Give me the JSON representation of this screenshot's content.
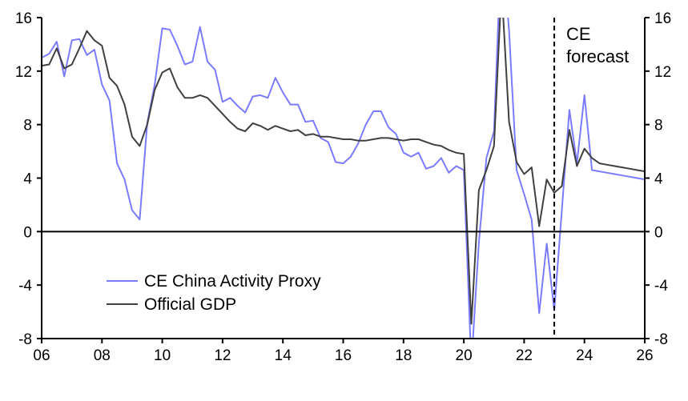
{
  "chart_data": {
    "type": "line",
    "title": "",
    "xlabel": "",
    "ylabel": "",
    "x_start": 2006.0,
    "x_step": 0.25,
    "xlim": [
      2006,
      2026
    ],
    "ylim": [
      -8,
      16
    ],
    "x_ticks": [
      2006,
      2008,
      2010,
      2012,
      2014,
      2016,
      2018,
      2020,
      2022,
      2024,
      2026
    ],
    "x_tick_labels": [
      "06",
      "08",
      "10",
      "12",
      "14",
      "16",
      "18",
      "20",
      "22",
      "24",
      "26"
    ],
    "y_ticks": [
      -8,
      -4,
      0,
      4,
      8,
      12,
      16
    ],
    "y_tick_labels": [
      "-8",
      "-4",
      "0",
      "4",
      "8",
      "12",
      "16"
    ],
    "legend_position": "bottom-left",
    "forecast_start": 2023.0,
    "annotation": [
      "CE",
      "forecast"
    ],
    "series": [
      {
        "name": "CE China Activity Proxy",
        "color": "#7b7bff",
        "values": [
          13.0,
          13.3,
          14.2,
          11.6,
          14.3,
          14.4,
          13.2,
          13.6,
          11.0,
          9.8,
          5.1,
          3.9,
          1.6,
          0.9,
          8.1,
          11.0,
          15.2,
          15.1,
          13.9,
          12.5,
          12.7,
          15.3,
          12.7,
          12.1,
          9.7,
          10.0,
          9.4,
          8.9,
          10.1,
          10.2,
          10.0,
          11.5,
          10.4,
          9.5,
          9.5,
          8.2,
          8.3,
          7.0,
          6.7,
          5.2,
          5.1,
          5.6,
          6.6,
          8.0,
          9.0,
          9.0,
          7.8,
          7.3,
          5.9,
          5.6,
          5.9,
          4.7,
          4.9,
          5.5,
          4.4,
          4.9,
          4.6,
          -10.0,
          -0.8,
          5.5,
          7.5,
          22.0,
          15.0,
          4.6,
          2.8,
          0.9,
          -6.1,
          -0.9,
          -5.9,
          1.6,
          9.1,
          5.1,
          10.2,
          4.6,
          4.5,
          4.4,
          4.3,
          4.2,
          4.1,
          4.0,
          3.9
        ]
      },
      {
        "name": "Official GDP",
        "color": "#404040",
        "values": [
          12.4,
          12.5,
          13.7,
          12.2,
          12.5,
          13.7,
          15.0,
          14.3,
          13.9,
          11.5,
          10.9,
          9.5,
          7.1,
          6.4,
          8.0,
          10.6,
          11.9,
          12.2,
          10.8,
          10.0,
          10.0,
          10.2,
          10.0,
          9.4,
          8.8,
          8.2,
          7.7,
          7.5,
          8.1,
          7.9,
          7.6,
          7.9,
          7.7,
          7.5,
          7.6,
          7.2,
          7.3,
          7.1,
          7.1,
          7.0,
          6.9,
          6.9,
          6.8,
          6.8,
          6.9,
          7.0,
          7.0,
          6.9,
          6.8,
          6.9,
          6.9,
          6.7,
          6.5,
          6.4,
          6.1,
          5.9,
          5.8,
          -6.9,
          3.1,
          4.6,
          6.4,
          18.3,
          8.2,
          5.2,
          4.3,
          4.8,
          0.4,
          3.9,
          2.9,
          3.4,
          7.6,
          4.9,
          6.2,
          5.5,
          5.1,
          5.0,
          4.9,
          4.8,
          4.7,
          4.6,
          4.5
        ]
      }
    ]
  }
}
